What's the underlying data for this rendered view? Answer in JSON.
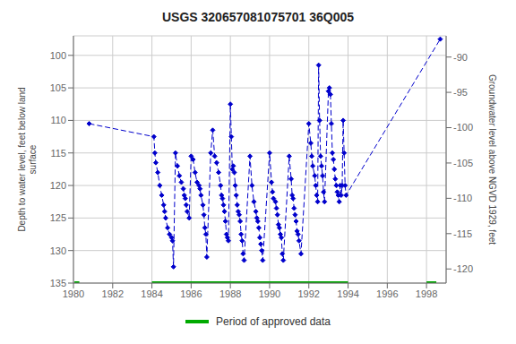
{
  "chart_data": {
    "type": "line",
    "title": "USGS 320657081075701 36Q005",
    "y_label": "Depth to water level, feet below land\nsurface",
    "y2_label": "Groundwater level above NGVD 1929, feet",
    "xlim": [
      1980,
      1999
    ],
    "xticks": [
      1980,
      1982,
      1984,
      1986,
      1988,
      1990,
      1992,
      1994,
      1996,
      1998
    ],
    "ylim": [
      135,
      97
    ],
    "yticks": [
      100,
      105,
      110,
      115,
      120,
      125,
      130,
      135
    ],
    "y2lim": [
      -122,
      -87
    ],
    "y2ticks": [
      -90,
      -95,
      -100,
      -105,
      -110,
      -115,
      -120
    ],
    "grid": true,
    "legend": "bottom",
    "series": [
      {
        "type": "line",
        "color": "#0000cc",
        "line_style": "dashed",
        "marker": "diamond",
        "x": [
          1980.8,
          1984.1,
          1984.15,
          1984.2,
          1984.3,
          1984.4,
          1984.5,
          1984.6,
          1984.65,
          1984.7,
          1984.8,
          1984.9,
          1985.0,
          1985.05,
          1985.1,
          1985.2,
          1985.3,
          1985.4,
          1985.5,
          1985.6,
          1985.65,
          1985.7,
          1985.75,
          1985.8,
          1985.9,
          1986.0,
          1986.1,
          1986.2,
          1986.3,
          1986.4,
          1986.45,
          1986.5,
          1986.6,
          1986.65,
          1986.7,
          1986.75,
          1986.8,
          1987.0,
          1987.1,
          1987.2,
          1987.3,
          1987.4,
          1987.5,
          1987.55,
          1987.6,
          1987.65,
          1987.7,
          1987.75,
          1987.8,
          1987.85,
          1987.9,
          1988.0,
          1988.05,
          1988.1,
          1988.15,
          1988.2,
          1988.25,
          1988.3,
          1988.35,
          1988.4,
          1988.45,
          1988.5,
          1988.55,
          1988.6,
          1988.65,
          1988.7,
          1989.0,
          1989.1,
          1989.2,
          1989.3,
          1989.35,
          1989.4,
          1989.45,
          1989.5,
          1989.55,
          1989.6,
          1989.65,
          1990.0,
          1990.1,
          1990.15,
          1990.2,
          1990.3,
          1990.35,
          1990.4,
          1990.45,
          1990.5,
          1990.55,
          1990.6,
          1990.65,
          1990.7,
          1991.0,
          1991.1,
          1991.15,
          1991.2,
          1991.25,
          1991.3,
          1991.35,
          1991.4,
          1991.45,
          1991.5,
          1991.6,
          1992.0,
          1992.1,
          1992.15,
          1992.2,
          1992.3,
          1992.35,
          1992.4,
          1992.45,
          1992.5,
          1992.55,
          1992.6,
          1992.65,
          1992.7,
          1992.75,
          1992.8,
          1993.0,
          1993.05,
          1993.1,
          1993.15,
          1993.2,
          1993.25,
          1993.3,
          1993.35,
          1993.4,
          1993.45,
          1993.5,
          1993.55,
          1993.6,
          1993.65,
          1993.7,
          1993.75,
          1993.8,
          1993.85,
          1993.9,
          1998.7
        ],
        "values": [
          110.5,
          112.5,
          115.0,
          116.5,
          118.0,
          120.0,
          121.5,
          123.0,
          124.0,
          125.0,
          126.5,
          127.5,
          128.0,
          128.5,
          132.5,
          115.0,
          117.0,
          118.5,
          119.5,
          120.5,
          121.5,
          122.0,
          123.0,
          124.0,
          125.0,
          115.5,
          116.0,
          118.0,
          119.5,
          120.0,
          120.5,
          121.5,
          123.0,
          124.5,
          126.5,
          127.5,
          131.0,
          115.0,
          111.5,
          115.5,
          116.5,
          118.0,
          120.0,
          121.5,
          122.0,
          123.0,
          124.0,
          125.5,
          127.5,
          128.0,
          128.5,
          107.5,
          112.5,
          117.5,
          117.0,
          118.0,
          120.0,
          121.5,
          123.0,
          124.0,
          124.5,
          125.5,
          127.5,
          128.5,
          130.5,
          131.5,
          115.5,
          120.0,
          122.5,
          124.0,
          125.0,
          125.5,
          126.5,
          128.0,
          129.0,
          130.0,
          131.5,
          115.0,
          119.5,
          121.0,
          122.0,
          122.5,
          123.5,
          124.5,
          126.0,
          126.5,
          127.5,
          128.0,
          130.5,
          131.5,
          115.5,
          119.0,
          121.5,
          122.0,
          123.5,
          124.5,
          125.5,
          127.0,
          127.5,
          128.5,
          130.5,
          110.5,
          113.5,
          115.5,
          117.0,
          118.5,
          120.0,
          121.5,
          122.5,
          101.5,
          110.0,
          115.5,
          117.0,
          118.5,
          121.0,
          122.5,
          105.5,
          105.0,
          106.0,
          110.5,
          115.0,
          116.0,
          117.5,
          119.0,
          120.0,
          121.0,
          121.5,
          122.5,
          120.0,
          121.5,
          120.0,
          110.0,
          115.0,
          120.0,
          121.5,
          97.5
        ]
      },
      {
        "name": "Period of approved data",
        "type": "segments",
        "color": "#00aa00",
        "segments": [
          [
            1980.05,
            1980.3
          ],
          [
            1984.0,
            1994.0
          ],
          [
            1998.0,
            1998.5
          ]
        ],
        "y": 135.0
      }
    ]
  }
}
